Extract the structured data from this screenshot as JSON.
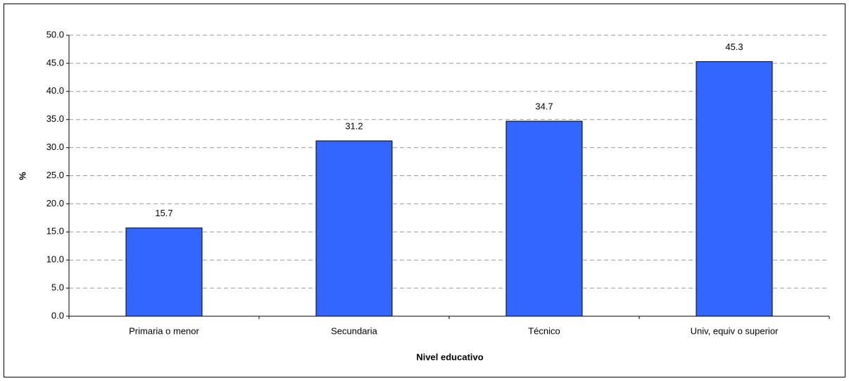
{
  "chart_data": {
    "type": "bar",
    "x_label": "Nivel educativo",
    "y_label": "%",
    "categories": [
      "Primaria o menor",
      "Secundaria",
      "Técnico",
      "Univ, equiv o superior"
    ],
    "values": [
      15.7,
      31.2,
      34.7,
      45.3
    ],
    "color": "#3366ff",
    "ylim": [
      0,
      50
    ],
    "yticks": [
      {
        "value": 0,
        "label": "0.0"
      },
      {
        "value": 5,
        "label": "5.0"
      },
      {
        "value": 10,
        "label": "10.0"
      },
      {
        "value": 15,
        "label": "15.0"
      },
      {
        "value": 20,
        "label": "20.0"
      },
      {
        "value": 25,
        "label": "25.0"
      },
      {
        "value": 30,
        "label": "30.0"
      },
      {
        "value": 35,
        "label": "35.0"
      },
      {
        "value": 40,
        "label": "40.0"
      },
      {
        "value": 45,
        "label": "45.0"
      },
      {
        "value": 50,
        "label": "50.0"
      }
    ],
    "grid": true
  }
}
